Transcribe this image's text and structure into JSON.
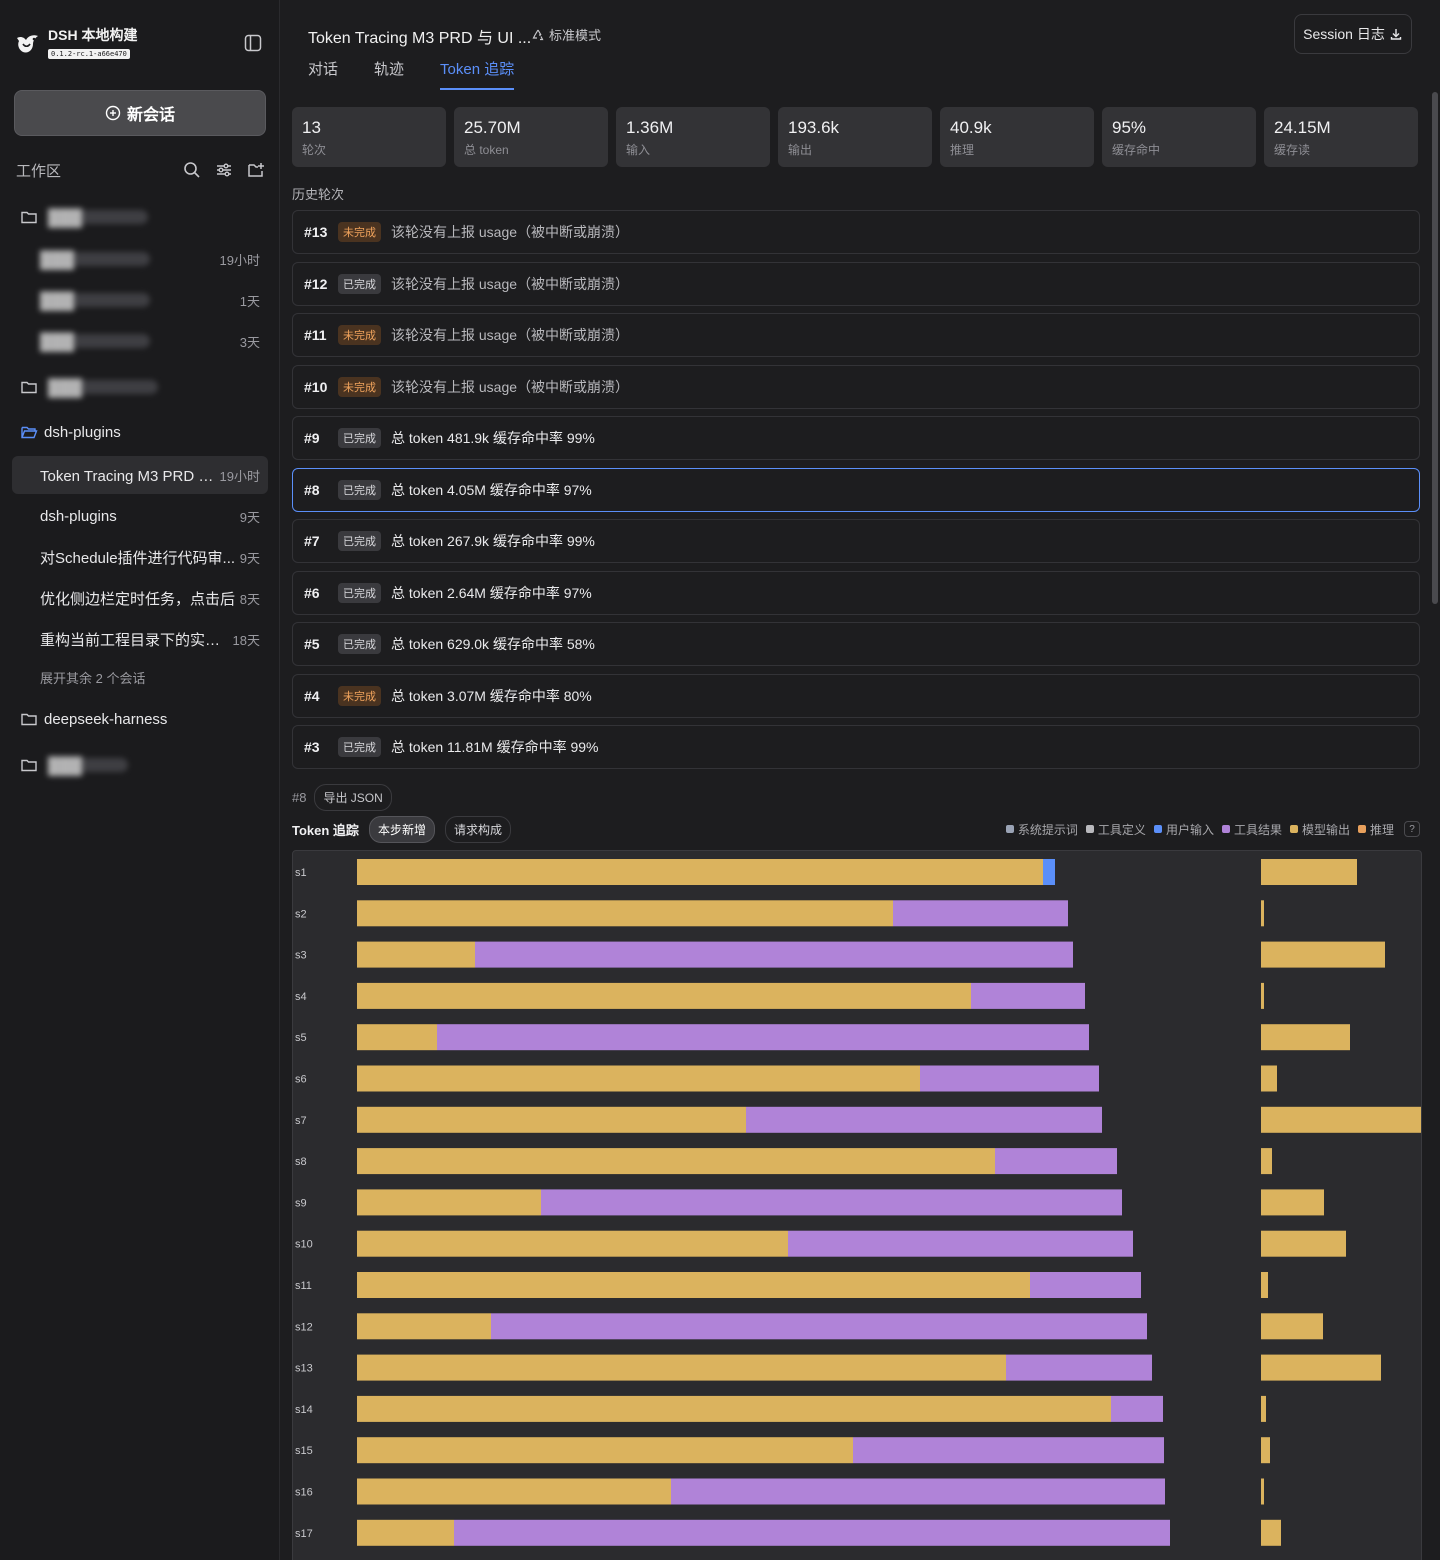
{
  "brand": {
    "name": "DSH 本地构建",
    "version": "0.1.2-rc.1-a66e470"
  },
  "sidebar": {
    "new_chat": "新会话",
    "workspace_title": "工作区",
    "tree": [
      {
        "type": "folder",
        "label": "███",
        "blurred": true,
        "open": false
      },
      {
        "type": "session",
        "label": "███",
        "blurred": true,
        "time": "19小时"
      },
      {
        "type": "session",
        "label": "███",
        "blurred": true,
        "time": "1天"
      },
      {
        "type": "session",
        "label": "███",
        "blurred": true,
        "time": "3天"
      },
      {
        "type": "folder",
        "label": "███",
        "blurred": true,
        "open": false
      },
      {
        "type": "folder",
        "label": "dsh-plugins",
        "blurred": false,
        "open": true
      },
      {
        "type": "session",
        "label": "Token Tracing M3 PRD 与...",
        "time": "19小时",
        "active": true
      },
      {
        "type": "session",
        "label": "dsh-plugins",
        "time": "9天"
      },
      {
        "type": "session",
        "label": "对Schedule插件进行代码审...",
        "time": "9天"
      },
      {
        "type": "session",
        "label": "优化侧边栏定时任务，点击后",
        "time": "8天"
      },
      {
        "type": "session",
        "label": "重构当前工程目录下的实现。",
        "time": "18天"
      },
      {
        "type": "folder",
        "label": "deepseek-harness",
        "blurred": false,
        "open": false
      },
      {
        "type": "folder",
        "label": "███",
        "blurred": true,
        "open": false
      }
    ],
    "expand_more": "展开其余 2 个会话"
  },
  "header": {
    "title": "Token Tracing M3 PRD 与 UI ...",
    "mode": "标准模式",
    "session_log": "Session 日志",
    "tabs": [
      {
        "label": "对话",
        "active": false
      },
      {
        "label": "轨迹",
        "active": false
      },
      {
        "label": "Token 追踪",
        "active": true
      }
    ]
  },
  "stats": [
    {
      "value": "13",
      "label": "轮次"
    },
    {
      "value": "25.70M",
      "label": "总 token"
    },
    {
      "value": "1.36M",
      "label": "输入"
    },
    {
      "value": "193.6k",
      "label": "输出"
    },
    {
      "value": "40.9k",
      "label": "推理"
    },
    {
      "value": "95%",
      "label": "缓存命中"
    },
    {
      "value": "24.15M",
      "label": "缓存读"
    }
  ],
  "history_label": "历史轮次",
  "rounds": [
    {
      "id": "#13",
      "status": "未完成",
      "state": "unfinished",
      "text": "该轮没有上报 usage（被中断或崩溃）",
      "dim": true
    },
    {
      "id": "#12",
      "status": "已完成",
      "state": "done",
      "text": "该轮没有上报 usage（被中断或崩溃）",
      "dim": true
    },
    {
      "id": "#11",
      "status": "未完成",
      "state": "unfinished",
      "text": "该轮没有上报 usage（被中断或崩溃）",
      "dim": true
    },
    {
      "id": "#10",
      "status": "未完成",
      "state": "unfinished",
      "text": "该轮没有上报 usage（被中断或崩溃）",
      "dim": true
    },
    {
      "id": "#9",
      "status": "已完成",
      "state": "done",
      "text": "总 token 481.9k   缓存命中率 99%"
    },
    {
      "id": "#8",
      "status": "已完成",
      "state": "done",
      "text": "总 token 4.05M   缓存命中率 97%",
      "selected": true
    },
    {
      "id": "#7",
      "status": "已完成",
      "state": "done",
      "text": "总 token 267.9k   缓存命中率 99%"
    },
    {
      "id": "#6",
      "status": "已完成",
      "state": "done",
      "text": "总 token 2.64M   缓存命中率 97%"
    },
    {
      "id": "#5",
      "status": "已完成",
      "state": "done",
      "text": "总 token 629.0k   缓存命中率 58%"
    },
    {
      "id": "#4",
      "status": "未完成",
      "state": "unfinished",
      "text": "总 token 3.07M   缓存命中率 80%"
    },
    {
      "id": "#3",
      "status": "已完成",
      "state": "done",
      "text": "总 token 11.81M   缓存命中率 99%"
    }
  ],
  "detail": {
    "round_id": "#8",
    "export_json": "导出 JSON",
    "trace_title": "Token 追踪",
    "toggle_step": "本步新增",
    "toggle_request": "请求构成",
    "help": "?"
  },
  "colors": {
    "accent": "#5b8ff9",
    "system_prompt": "#9aa3b5",
    "tool_def": "#b9b9bd",
    "user_input": "#5b8ff9",
    "tool_result": "#b083d8",
    "model_output": "#dbb35e",
    "reasoning": "#e8a05c"
  },
  "chart_data": {
    "type": "bar",
    "stacked": true,
    "orientation": "horizontal",
    "legend_position": "top-right",
    "legend": [
      "系统提示词",
      "工具定义",
      "用户输入",
      "工具结果",
      "模型输出",
      "推理"
    ],
    "categories": [
      "s1",
      "s2",
      "s3",
      "s4",
      "s5",
      "s6",
      "s7",
      "s8",
      "s9",
      "s10",
      "s11",
      "s12",
      "s13",
      "s14",
      "s15",
      "s16",
      "s17"
    ],
    "series": [
      {
        "name": "模型输出",
        "color": "#dbb35e",
        "values": [
          686,
          536,
          118,
          614,
          80,
          563,
          389,
          638,
          184,
          431,
          673,
          134,
          649,
          754,
          496,
          314,
          97
        ]
      },
      {
        "name": "用户输入",
        "color": "#5b8ff9",
        "values": [
          12,
          0,
          0,
          0,
          0,
          0,
          0,
          0,
          0,
          0,
          0,
          0,
          0,
          0,
          0,
          0,
          0
        ]
      },
      {
        "name": "工具结果",
        "color": "#b083d8",
        "values": [
          0,
          175,
          598,
          114,
          652,
          179,
          356,
          122,
          581,
          345,
          111,
          656,
          146,
          52,
          311,
          494,
          716
        ]
      }
    ],
    "side_values": [
      96,
      3,
      124,
      3,
      89,
      16,
      160,
      11,
      63,
      85,
      7,
      62,
      120,
      5,
      9,
      3,
      20
    ]
  }
}
